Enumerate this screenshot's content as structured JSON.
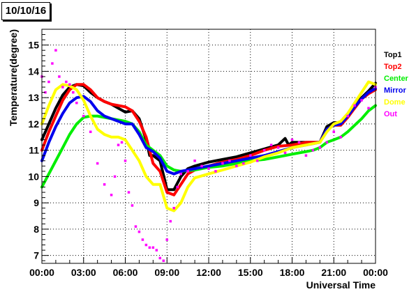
{
  "header": {
    "date": "10/10/16"
  },
  "chart_data": {
    "type": "line",
    "title": "",
    "xlabel": "Universal Time",
    "ylabel": "Temperature(degree)",
    "xlim": [
      0,
      24
    ],
    "ylim": [
      6.7,
      15.6
    ],
    "xticks": [
      {
        "value": 0,
        "label": "00:00"
      },
      {
        "value": 3,
        "label": "03:00"
      },
      {
        "value": 6,
        "label": "06:00"
      },
      {
        "value": 9,
        "label": "09:00"
      },
      {
        "value": 12,
        "label": "12:00"
      },
      {
        "value": 15,
        "label": "15:00"
      },
      {
        "value": 18,
        "label": "18:00"
      },
      {
        "value": 21,
        "label": "21:00"
      },
      {
        "value": 24,
        "label": "00:00"
      }
    ],
    "yticks": [
      7,
      8,
      9,
      10,
      11,
      12,
      13,
      14,
      15
    ],
    "grid": true,
    "legend_position": "right",
    "series": [
      {
        "name": "Top1",
        "color": "#000000",
        "marker": "line",
        "x": [
          0,
          0.5,
          1,
          1.5,
          2,
          2.5,
          3,
          3.5,
          4,
          4.5,
          5,
          5.5,
          6,
          6.5,
          7,
          7.25,
          7.5,
          7.75,
          8,
          8.5,
          9,
          9.5,
          10,
          10.5,
          11,
          12,
          13,
          14,
          15,
          16,
          17,
          17.5,
          17.75,
          18,
          19,
          20,
          20.5,
          21,
          21.5,
          22,
          22.5,
          23,
          23.5,
          24
        ],
        "y": [
          11.4,
          12.0,
          12.6,
          13.1,
          13.4,
          13.5,
          13.45,
          13.2,
          13.0,
          12.85,
          12.75,
          12.6,
          12.45,
          12.5,
          12.2,
          11.8,
          11.4,
          10.8,
          10.8,
          10.6,
          9.5,
          9.5,
          10.0,
          10.3,
          10.4,
          10.55,
          10.65,
          10.75,
          10.9,
          11.05,
          11.2,
          11.45,
          11.2,
          11.3,
          11.3,
          11.3,
          11.9,
          12.05,
          12.05,
          12.3,
          12.7,
          13.0,
          13.25,
          13.55
        ]
      },
      {
        "name": "Top2",
        "color": "#ff0000",
        "marker": "line",
        "x": [
          0,
          0.5,
          1,
          1.5,
          2,
          2.5,
          3,
          3.5,
          4,
          4.5,
          5,
          5.5,
          6,
          6.5,
          7,
          7.5,
          8,
          8.5,
          9,
          9.5,
          10,
          10.5,
          11,
          12,
          13,
          14,
          15,
          16,
          17,
          18,
          19,
          20,
          20.5,
          21,
          21.5,
          22,
          22.5,
          23,
          23.5,
          24
        ],
        "y": [
          11.0,
          11.7,
          12.3,
          12.9,
          13.3,
          13.5,
          13.5,
          13.3,
          13.0,
          12.85,
          12.75,
          12.7,
          12.65,
          12.5,
          12.1,
          11.5,
          10.5,
          10.2,
          9.4,
          9.3,
          9.7,
          10.1,
          10.25,
          10.4,
          10.55,
          10.65,
          10.8,
          11.0,
          11.15,
          11.2,
          11.3,
          11.3,
          11.8,
          11.95,
          11.95,
          12.25,
          12.6,
          12.95,
          13.15,
          13.3
        ]
      },
      {
        "name": "Center",
        "color": "#00ee00",
        "marker": "line",
        "x": [
          0,
          0.5,
          1,
          1.5,
          2,
          2.5,
          3,
          3.5,
          4,
          4.5,
          5,
          5.5,
          6,
          6.5,
          7,
          7.5,
          8,
          8.5,
          9,
          9.5,
          10,
          11,
          12,
          13,
          14,
          15,
          16,
          17,
          18,
          19,
          19.5,
          20,
          20.5,
          21,
          21.5,
          22,
          22.5,
          23,
          23.5,
          24
        ],
        "y": [
          9.6,
          10.1,
          10.6,
          11.1,
          11.6,
          12.0,
          12.25,
          12.3,
          12.3,
          12.25,
          12.2,
          12.15,
          12.1,
          12.0,
          11.7,
          11.2,
          11.0,
          10.8,
          10.4,
          10.25,
          10.2,
          10.25,
          10.35,
          10.4,
          10.5,
          10.6,
          10.65,
          10.75,
          10.85,
          10.95,
          11.0,
          11.1,
          11.3,
          11.4,
          11.5,
          11.7,
          11.95,
          12.2,
          12.5,
          12.7
        ]
      },
      {
        "name": "Mirror",
        "color": "#0000ee",
        "marker": "line",
        "x": [
          0,
          0.5,
          1,
          1.5,
          2,
          2.5,
          3,
          3.5,
          4,
          4.5,
          5,
          5.5,
          6,
          6.5,
          7,
          7.5,
          8,
          8.5,
          9,
          9.5,
          10,
          11,
          12,
          13,
          14,
          15,
          16,
          17,
          18,
          19,
          20,
          20.5,
          21,
          21.5,
          22,
          22.5,
          23,
          23.5,
          24
        ],
        "y": [
          10.6,
          11.3,
          11.9,
          12.4,
          12.8,
          13.0,
          13.05,
          12.85,
          12.5,
          12.3,
          12.2,
          12.1,
          12.0,
          12.0,
          11.6,
          11.1,
          10.95,
          10.7,
          10.2,
          10.1,
          10.2,
          10.3,
          10.4,
          10.5,
          10.6,
          10.7,
          10.8,
          10.95,
          11.1,
          11.2,
          11.3,
          11.8,
          11.95,
          12.0,
          12.3,
          12.65,
          12.95,
          13.2,
          13.35
        ]
      },
      {
        "name": "Dome",
        "color": "#ffff00",
        "marker": "line",
        "x": [
          0,
          0.5,
          1,
          1.5,
          2,
          2.5,
          3,
          3.5,
          4,
          4.5,
          5,
          5.5,
          6,
          6.5,
          7,
          7.5,
          8,
          8.5,
          9,
          9.5,
          10,
          10.5,
          11,
          12,
          13,
          14,
          15,
          16,
          17,
          18,
          19,
          20,
          20.5,
          21,
          21.5,
          22,
          22.5,
          23,
          23.5,
          24
        ],
        "y": [
          12.0,
          12.7,
          13.3,
          13.5,
          13.45,
          13.3,
          12.9,
          12.3,
          11.8,
          11.6,
          11.5,
          11.5,
          11.4,
          11.0,
          10.6,
          10.0,
          9.7,
          9.7,
          8.8,
          8.7,
          9.0,
          9.6,
          9.95,
          10.1,
          10.25,
          10.4,
          10.55,
          10.75,
          10.9,
          11.1,
          11.2,
          11.3,
          11.7,
          12.0,
          12.1,
          12.4,
          12.8,
          13.2,
          13.6,
          13.5
        ]
      },
      {
        "name": "Out",
        "color": "#ff00ff",
        "marker": "scatter",
        "x": [
          0,
          0.25,
          0.5,
          0.75,
          1,
          1.25,
          1.5,
          1.75,
          2,
          2.25,
          2.5,
          3,
          3.5,
          4,
          4.5,
          5,
          5.25,
          5.5,
          5.75,
          6,
          6.25,
          6.5,
          6.75,
          7,
          7.25,
          7.5,
          7.75,
          8,
          8.25,
          8.5,
          8.75,
          9,
          9.25,
          9.5,
          9.75,
          10,
          10.5,
          11,
          11.5,
          12,
          12.5,
          13,
          13.5,
          14,
          14.5,
          15,
          15.5,
          16,
          16.5,
          17,
          17.5,
          18,
          18.5,
          19,
          19.5,
          20,
          20.5,
          21,
          21.5,
          22,
          22.5,
          23,
          23.5,
          24
        ],
        "y": [
          13.8,
          13.2,
          13.6,
          14.3,
          14.8,
          13.8,
          13.4,
          13.6,
          13.5,
          13.2,
          12.8,
          12.3,
          11.7,
          10.5,
          9.7,
          9.3,
          10.0,
          11.2,
          11.3,
          10.6,
          9.4,
          8.9,
          8.1,
          7.9,
          7.6,
          7.4,
          7.3,
          7.3,
          7.2,
          6.9,
          6.8,
          7.6,
          8.3,
          8.8,
          9.6,
          10.1,
          10.2,
          10.6,
          10.4,
          10.3,
          10.2,
          10.5,
          10.6,
          10.4,
          10.5,
          10.8,
          10.6,
          11.0,
          11.2,
          11.1,
          10.9,
          11.4,
          11.3,
          10.8,
          11.0,
          11.1,
          11.3,
          11.7,
          11.5,
          12.3,
          12.7,
          12.9,
          12.6,
          13.4
        ]
      }
    ]
  }
}
